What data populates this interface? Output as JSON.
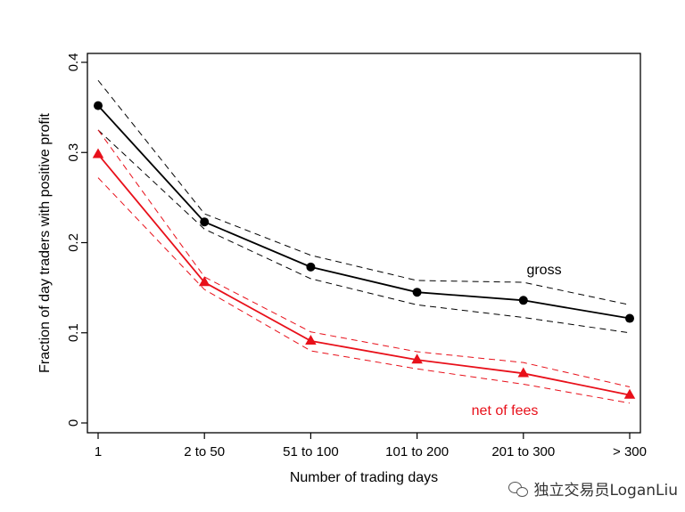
{
  "chart_data": {
    "type": "line",
    "categories": [
      "1",
      "2 to 50",
      "51 to 100",
      "101 to 200",
      "201 to 300",
      "> 300"
    ],
    "xlabel": "Number of trading days",
    "ylabel": "Fraction of day traders with positive profit",
    "ylim": [
      0,
      0.4
    ],
    "yticks": [
      "0",
      "0.1",
      "0.2",
      "0.3",
      "0.4"
    ],
    "grid": false,
    "series": [
      {
        "name": "gross",
        "color": "#000000",
        "marker": "circle",
        "values": [
          0.352,
          0.223,
          0.173,
          0.145,
          0.136,
          0.116
        ],
        "upper": [
          0.38,
          0.232,
          0.186,
          0.158,
          0.156,
          0.131
        ],
        "lower": [
          0.325,
          0.215,
          0.16,
          0.131,
          0.117,
          0.1
        ]
      },
      {
        "name": "net of fees",
        "color": "#e8101a",
        "marker": "triangle",
        "values": [
          0.298,
          0.156,
          0.091,
          0.07,
          0.055,
          0.031
        ],
        "upper": [
          0.325,
          0.162,
          0.101,
          0.079,
          0.067,
          0.04
        ],
        "lower": [
          0.272,
          0.148,
          0.08,
          0.06,
          0.043,
          0.022
        ]
      }
    ]
  },
  "watermark": {
    "text": "独立交易员LoganLiu",
    "icon": "wechat-icon"
  }
}
